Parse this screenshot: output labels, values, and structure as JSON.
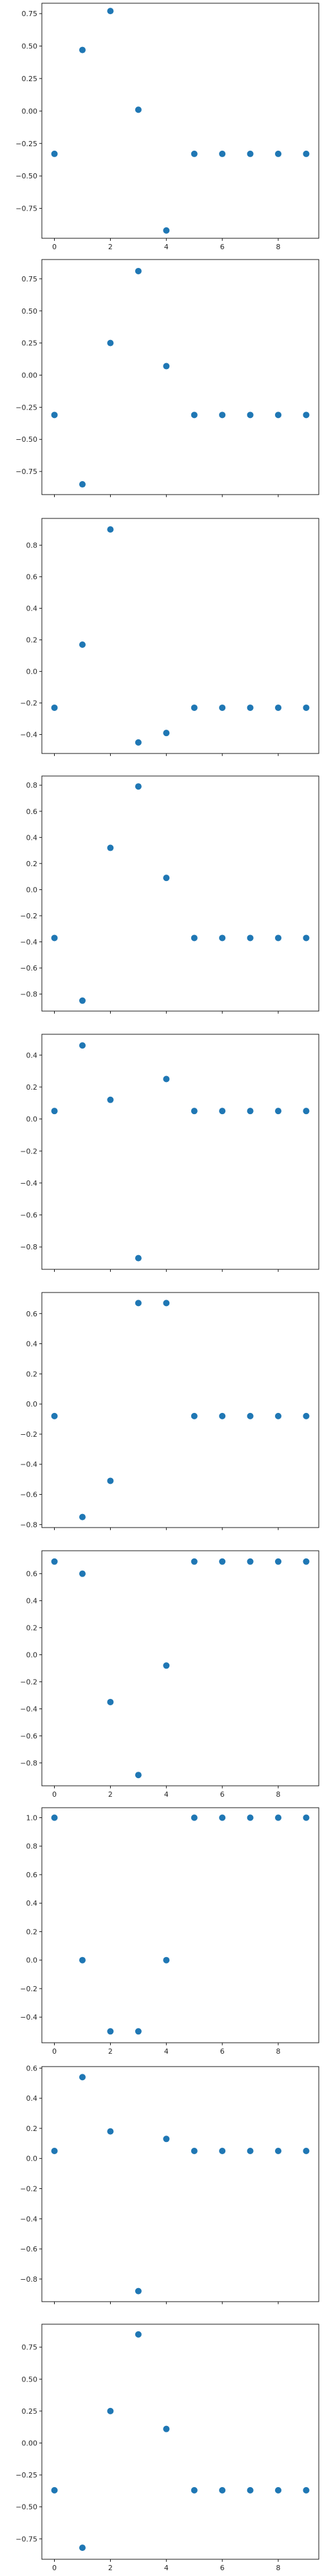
{
  "chart_data": [
    {
      "type": "scatter",
      "x": [
        0,
        1,
        2,
        3,
        4,
        5,
        6,
        7,
        8,
        9
      ],
      "y": [
        -0.33,
        0.47,
        0.77,
        0.01,
        -0.92,
        -0.33,
        -0.33,
        -0.33,
        -0.33,
        -0.33
      ],
      "ylim": [
        -0.98,
        0.83
      ],
      "xlim": [
        -0.45,
        9.45
      ],
      "xticks": [
        0,
        2,
        4,
        6,
        8
      ],
      "yticks": [
        -0.75,
        -0.5,
        -0.25,
        0.0,
        0.25,
        0.5,
        0.75
      ],
      "ytick_labels": [
        "−0.75",
        "−0.50",
        "−0.25",
        "0.00",
        "0.25",
        "0.50",
        "0.75"
      ],
      "show_xtick_labels": true
    },
    {
      "type": "scatter",
      "x": [
        0,
        1,
        2,
        3,
        4,
        5,
        6,
        7,
        8,
        9
      ],
      "y": [
        -0.31,
        -0.85,
        0.25,
        0.81,
        0.07,
        -0.31,
        -0.31,
        -0.31,
        -0.31,
        -0.31
      ],
      "ylim": [
        -0.93,
        0.9
      ],
      "xlim": [
        -0.45,
        9.45
      ],
      "xticks": [
        0,
        2,
        4,
        6,
        8
      ],
      "yticks": [
        -0.75,
        -0.5,
        -0.25,
        0.0,
        0.25,
        0.5,
        0.75
      ],
      "ytick_labels": [
        "−0.75",
        "−0.50",
        "−0.25",
        "0.00",
        "0.25",
        "0.50",
        "0.75"
      ],
      "show_xtick_labels": false
    },
    {
      "type": "scatter",
      "x": [
        0,
        1,
        2,
        3,
        4,
        5,
        6,
        7,
        8,
        9
      ],
      "y": [
        -0.23,
        0.17,
        0.9,
        -0.45,
        -0.39,
        -0.23,
        -0.23,
        -0.23,
        -0.23,
        -0.23
      ],
      "ylim": [
        -0.52,
        0.97
      ],
      "xlim": [
        -0.45,
        9.45
      ],
      "xticks": [
        0,
        2,
        4,
        6,
        8
      ],
      "yticks": [
        -0.4,
        -0.2,
        0.0,
        0.2,
        0.4,
        0.6,
        0.8
      ],
      "ytick_labels": [
        "−0.4",
        "−0.2",
        "0.0",
        "0.2",
        "0.4",
        "0.6",
        "0.8"
      ],
      "show_xtick_labels": false
    },
    {
      "type": "scatter",
      "x": [
        0,
        1,
        2,
        3,
        4,
        5,
        6,
        7,
        8,
        9
      ],
      "y": [
        -0.37,
        -0.85,
        0.32,
        0.79,
        0.09,
        -0.37,
        -0.37,
        -0.37,
        -0.37,
        -0.37
      ],
      "ylim": [
        -0.93,
        0.87
      ],
      "xlim": [
        -0.45,
        9.45
      ],
      "xticks": [
        0,
        2,
        4,
        6,
        8
      ],
      "yticks": [
        -0.8,
        -0.6,
        -0.4,
        -0.2,
        0.0,
        0.2,
        0.4,
        0.6,
        0.8
      ],
      "ytick_labels": [
        "−0.8",
        "−0.6",
        "−0.4",
        "−0.2",
        "0.0",
        "0.2",
        "0.4",
        "0.6",
        "0.8"
      ],
      "show_xtick_labels": false
    },
    {
      "type": "scatter",
      "x": [
        0,
        1,
        2,
        3,
        4,
        5,
        6,
        7,
        8,
        9
      ],
      "y": [
        0.05,
        0.46,
        0.12,
        -0.87,
        0.25,
        0.05,
        0.05,
        0.05,
        0.05,
        0.05
      ],
      "ylim": [
        -0.94,
        0.53
      ],
      "xlim": [
        -0.45,
        9.45
      ],
      "xticks": [
        0,
        2,
        4,
        6,
        8
      ],
      "yticks": [
        -0.8,
        -0.6,
        -0.4,
        -0.2,
        0.0,
        0.2,
        0.4
      ],
      "ytick_labels": [
        "−0.8",
        "−0.6",
        "−0.4",
        "−0.2",
        "0.0",
        "0.2",
        "0.4"
      ],
      "show_xtick_labels": false
    },
    {
      "type": "scatter",
      "x": [
        0,
        1,
        2,
        3,
        4,
        5,
        6,
        7,
        8,
        9
      ],
      "y": [
        -0.08,
        -0.75,
        -0.51,
        0.67,
        0.67,
        -0.08,
        -0.08,
        -0.08,
        -0.08,
        -0.08
      ],
      "ylim": [
        -0.82,
        0.74
      ],
      "xlim": [
        -0.45,
        9.45
      ],
      "xticks": [
        0,
        2,
        4,
        6,
        8
      ],
      "yticks": [
        -0.8,
        -0.6,
        -0.4,
        -0.2,
        0.0,
        0.2,
        0.4,
        0.6
      ],
      "ytick_labels": [
        "−0.8",
        "−0.6",
        "−0.4",
        "−0.2",
        "0.0",
        "0.2",
        "0.4",
        "0.6"
      ],
      "show_xtick_labels": false
    },
    {
      "type": "scatter",
      "x": [
        0,
        1,
        2,
        3,
        4,
        5,
        6,
        7,
        8,
        9
      ],
      "y": [
        0.69,
        0.6,
        -0.35,
        -0.89,
        -0.08,
        0.69,
        0.69,
        0.69,
        0.69,
        0.69
      ],
      "ylim": [
        -0.97,
        0.77
      ],
      "xlim": [
        -0.45,
        9.45
      ],
      "xticks": [
        0,
        2,
        4,
        6,
        8
      ],
      "yticks": [
        -0.8,
        -0.6,
        -0.4,
        -0.2,
        0.0,
        0.2,
        0.4,
        0.6
      ],
      "ytick_labels": [
        "−0.8",
        "−0.6",
        "−0.4",
        "−0.2",
        "0.0",
        "0.2",
        "0.4",
        "0.6"
      ],
      "show_xtick_labels": true
    },
    {
      "type": "scatter",
      "x": [
        0,
        1,
        2,
        3,
        4,
        5,
        6,
        7,
        8,
        9
      ],
      "y": [
        1.0,
        0.0,
        -0.5,
        -0.5,
        0.0,
        1.0,
        1.0,
        1.0,
        1.0,
        1.0
      ],
      "ylim": [
        -0.58,
        1.07
      ],
      "xlim": [
        -0.45,
        9.45
      ],
      "xticks": [
        0,
        2,
        4,
        6,
        8
      ],
      "yticks": [
        -0.4,
        -0.2,
        0.0,
        0.2,
        0.4,
        0.6,
        0.8,
        1.0
      ],
      "ytick_labels": [
        "−0.4",
        "−0.2",
        "0.0",
        "0.2",
        "0.4",
        "0.6",
        "0.8",
        "1.0"
      ],
      "show_xtick_labels": true
    },
    {
      "type": "scatter",
      "x": [
        0,
        1,
        2,
        3,
        4,
        5,
        6,
        7,
        8,
        9
      ],
      "y": [
        0.05,
        0.54,
        0.18,
        -0.88,
        0.13,
        0.05,
        0.05,
        0.05,
        0.05,
        0.05
      ],
      "ylim": [
        -0.95,
        0.61
      ],
      "xlim": [
        -0.45,
        9.45
      ],
      "xticks": [
        0,
        2,
        4,
        6,
        8
      ],
      "yticks": [
        -0.8,
        -0.6,
        -0.4,
        -0.2,
        0.0,
        0.2,
        0.4,
        0.6
      ],
      "ytick_labels": [
        "−0.8",
        "−0.6",
        "−0.4",
        "−0.2",
        "0.0",
        "0.2",
        "0.4",
        "0.6"
      ],
      "show_xtick_labels": false
    },
    {
      "type": "scatter",
      "x": [
        0,
        1,
        2,
        3,
        4,
        5,
        6,
        7,
        8,
        9
      ],
      "y": [
        -0.37,
        -0.82,
        0.25,
        0.85,
        0.11,
        -0.37,
        -0.37,
        -0.37,
        -0.37,
        -0.37
      ],
      "ylim": [
        -0.91,
        0.93
      ],
      "xlim": [
        -0.45,
        9.45
      ],
      "xticks": [
        0,
        2,
        4,
        6,
        8
      ],
      "yticks": [
        -0.75,
        -0.5,
        -0.25,
        0.0,
        0.25,
        0.5,
        0.75
      ],
      "ytick_labels": [
        "−0.75",
        "−0.50",
        "−0.25",
        "0.00",
        "0.25",
        "0.50",
        "0.75"
      ],
      "show_xtick_labels": true
    }
  ],
  "colors": {
    "marker": "#1f77b4",
    "axis": "#000000",
    "text": "#262626"
  }
}
